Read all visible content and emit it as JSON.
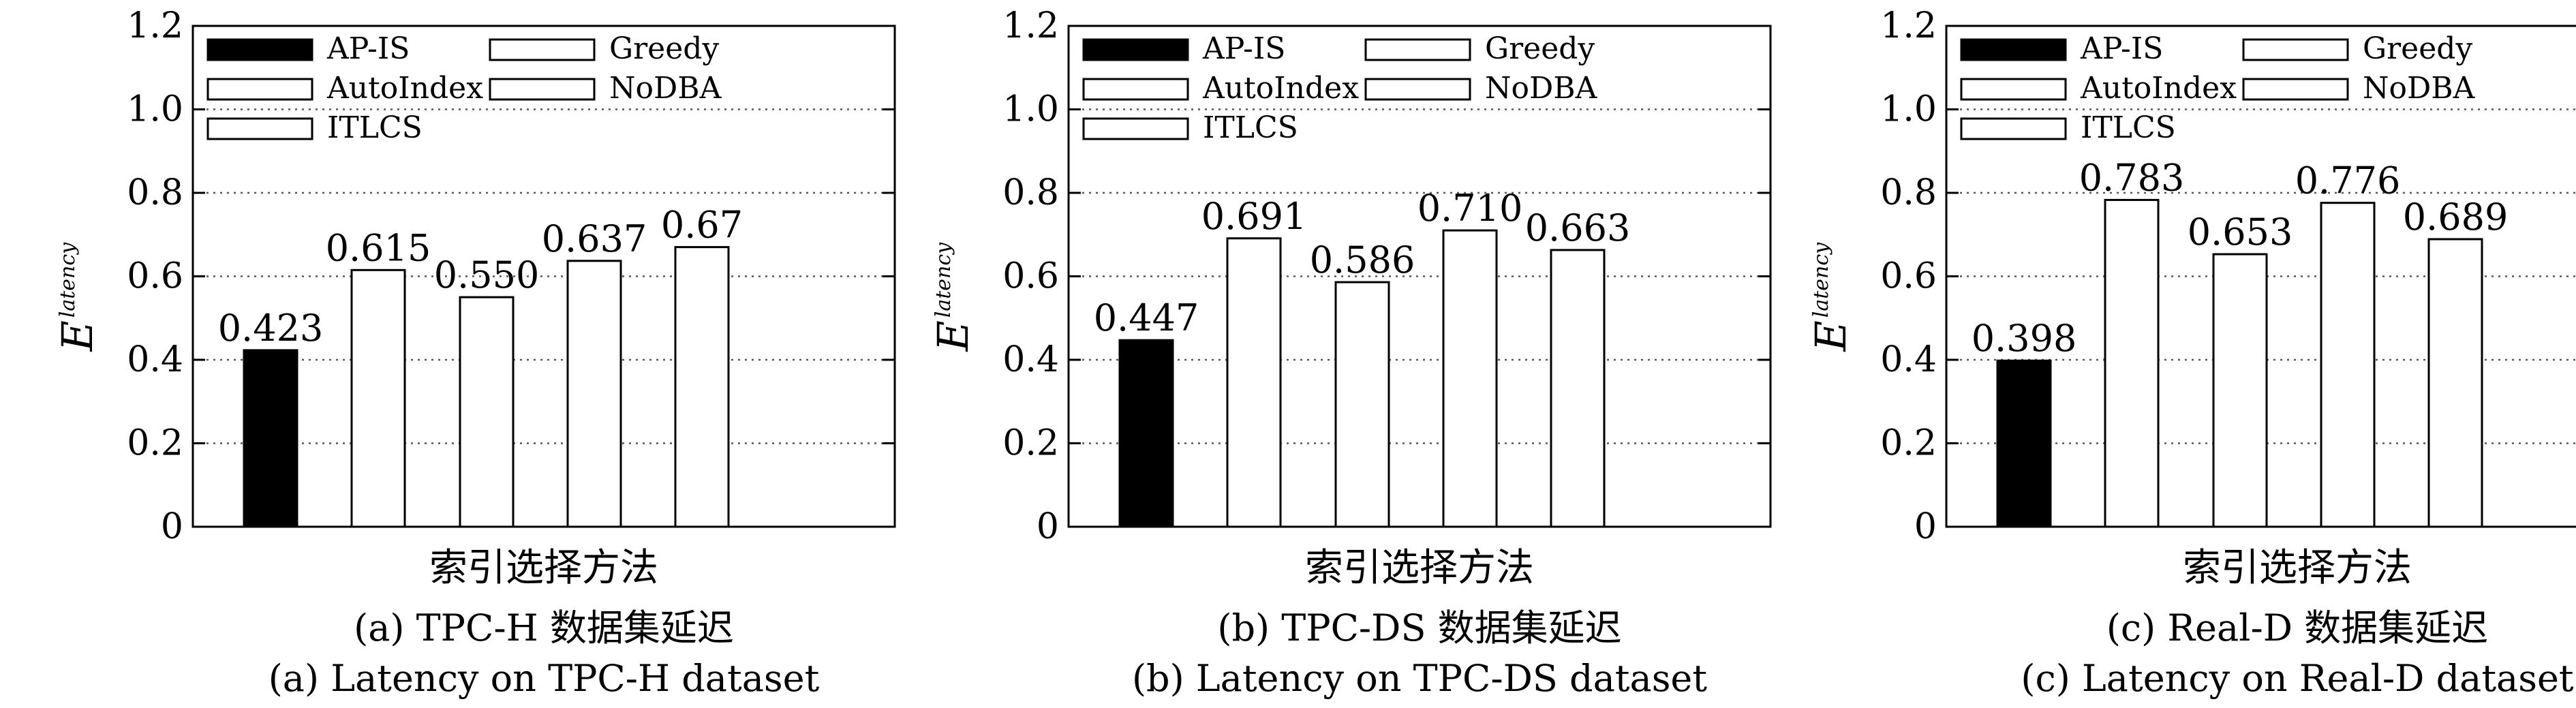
{
  "chart_data": [
    {
      "type": "bar",
      "categories": [
        "AP-IS",
        "AutoIndex",
        "ITLCS",
        "Greedy",
        "NoDBA"
      ],
      "values": [
        0.423,
        0.615,
        0.55,
        0.637,
        0.67
      ],
      "value_labels": [
        "0.423",
        "0.615",
        "0.550",
        "0.637",
        "0.67"
      ],
      "ylabel": "E",
      "ylabel_superscript": "latency",
      "xlabel": "索引选择方法",
      "ylim": [
        0,
        1.2
      ],
      "yticks": [
        "0",
        "0.2",
        "0.4",
        "0.6",
        "0.8",
        "1.0",
        "1.2"
      ],
      "grid": "horizontal dotted",
      "legend": "top-left, 3 rows x 2 columns",
      "legend_entries": [
        "AP-IS",
        "Greedy",
        "AutoIndex",
        "NoDBA",
        "ITLCS"
      ],
      "caption_cn": "(a) TPC-H 数据集延迟",
      "caption_en": "(a) Latency on TPC-H dataset"
    },
    {
      "type": "bar",
      "categories": [
        "AP-IS",
        "AutoIndex",
        "ITLCS",
        "Greedy",
        "NoDBA"
      ],
      "values": [
        0.447,
        0.691,
        0.586,
        0.71,
        0.663
      ],
      "value_labels": [
        "0.447",
        "0.691",
        "0.586",
        "0.710",
        "0.663"
      ],
      "ylabel": "E",
      "ylabel_superscript": "latency",
      "xlabel": "索引选择方法",
      "ylim": [
        0,
        1.2
      ],
      "yticks": [
        "0",
        "0.2",
        "0.4",
        "0.6",
        "0.8",
        "1.0",
        "1.2"
      ],
      "grid": "horizontal dotted",
      "legend": "top-left, 3 rows x 2 columns",
      "legend_entries": [
        "AP-IS",
        "Greedy",
        "AutoIndex",
        "NoDBA",
        "ITLCS"
      ],
      "caption_cn": "(b) TPC-DS 数据集延迟",
      "caption_en": "(b) Latency on TPC-DS dataset"
    },
    {
      "type": "bar",
      "categories": [
        "AP-IS",
        "AutoIndex",
        "ITLCS",
        "Greedy",
        "NoDBA"
      ],
      "values": [
        0.398,
        0.783,
        0.653,
        0.776,
        0.689
      ],
      "value_labels": [
        "0.398",
        "0.783",
        "0.653",
        "0.776",
        "0.689"
      ],
      "ylabel": "E",
      "ylabel_superscript": "latency",
      "xlabel": "索引选择方法",
      "ylim": [
        0,
        1.2
      ],
      "yticks": [
        "0",
        "0.2",
        "0.4",
        "0.6",
        "0.8",
        "1.0",
        "1.2"
      ],
      "grid": "horizontal dotted",
      "legend": "top-left, 3 rows x 2 columns",
      "legend_entries": [
        "AP-IS",
        "Greedy",
        "AutoIndex",
        "NoDBA",
        "ITLCS"
      ],
      "caption_cn": "(c) Real-D 数据集延迟",
      "caption_en": "(c) Latency on Real-D dataset"
    }
  ],
  "colors": {
    "AP-IS": "#000000",
    "AutoIndex": "#ffffff",
    "ITLCS": "#ffffff",
    "Greedy": "#ffffff",
    "NoDBA": "#ffffff",
    "stroke": "#000000",
    "grid": "#555555"
  }
}
